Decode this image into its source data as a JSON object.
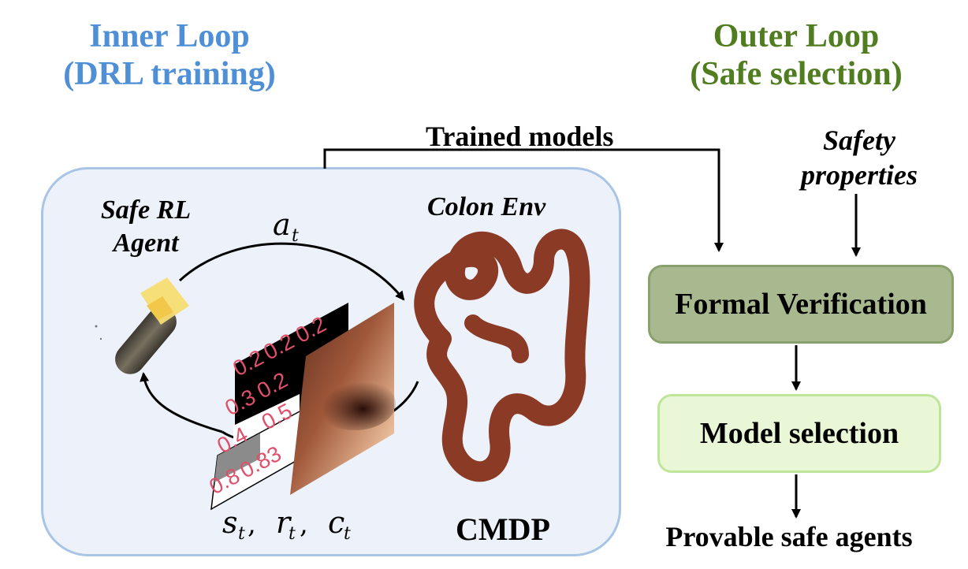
{
  "inner_loop": {
    "line1": "Inner Loop",
    "line2": "(DRL training)"
  },
  "outer_loop": {
    "line1": "Outer Loop",
    "line2": "(Safe selection)"
  },
  "trained_models": "Trained models",
  "safety_properties": {
    "line1": "Safety",
    "line2": "properties"
  },
  "agent_label": {
    "line1": "Safe RL",
    "line2": "Agent"
  },
  "env_label": "Colon Env",
  "action_label": "a",
  "action_sub": "t",
  "feedback_label": {
    "s": "s",
    "r": "r",
    "c": "c",
    "sub": "t"
  },
  "cmdp_label": "CMDP",
  "formal_verification": "Formal Verification",
  "model_selection": "Model selection",
  "provable_agents": "Provable safe agents",
  "observation_values": {
    "row1": [
      "0.2",
      "0.2",
      "0.2"
    ],
    "row2": [
      "0.3",
      "0.2"
    ],
    "row3": [
      "0.4",
      "0.5"
    ],
    "row4": [
      "0.8",
      "0.83"
    ]
  },
  "colors": {
    "inner_title": "#4f8fd6",
    "outer_title": "#4f7d20",
    "inner_box_fill": "#edf2fa",
    "inner_box_border": "#a9c5e6",
    "formal_verification_fill": "#a8b990",
    "model_selection_fill": "#eaf7d6",
    "colon": "#8a3a25",
    "value_text": "#e0506a"
  }
}
